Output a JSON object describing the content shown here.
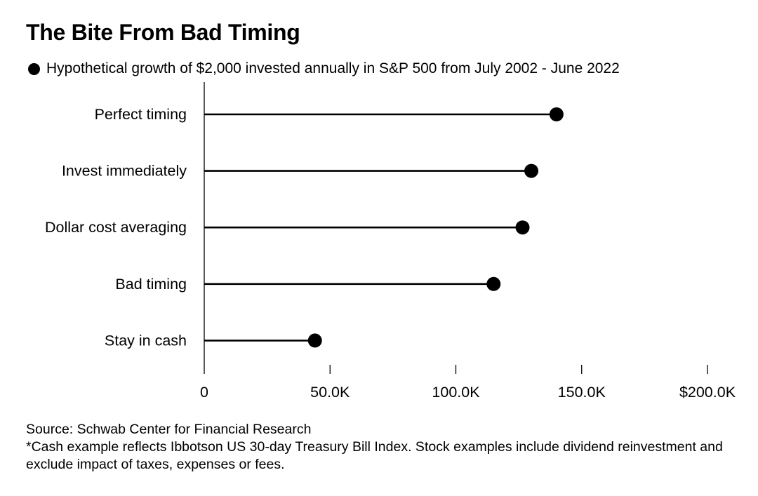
{
  "title": "The Bite From Bad Timing",
  "legend": {
    "label": "Hypothetical growth of $2,000 invested annually in S&P 500 from July 2002 - June 2022"
  },
  "chart_data": {
    "type": "lollipop",
    "orientation": "horizontal",
    "categories": [
      "Perfect timing",
      "Invest immediately",
      "Dollar cost averaging",
      "Bad timing",
      "Stay in cash"
    ],
    "series": [
      {
        "values": [
          140000,
          130000,
          126500,
          115000,
          44000
        ]
      }
    ],
    "xlim": [
      0,
      200000
    ],
    "x_ticks": [
      0,
      50000,
      100000,
      150000,
      200000
    ],
    "x_tick_labels": [
      "0",
      "50.0K",
      "100.0K",
      "150.0K",
      "$200.0K"
    ],
    "grid": false,
    "colors": {
      "mark": "#000000",
      "axis": "#000000"
    }
  },
  "footer": {
    "source": "Source: Schwab Center for Financial Research",
    "note": "*Cash example reflects Ibbotson US 30-day Treasury Bill Index. Stock examples include dividend reinvestment and exclude impact of taxes, expenses or fees."
  }
}
